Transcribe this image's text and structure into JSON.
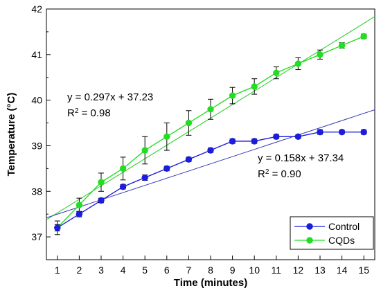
{
  "chart_data": {
    "type": "line",
    "xlabel": "Time (minutes)",
    "ylabel": "Temperature (°C)",
    "xlim": [
      0.5,
      15.5
    ],
    "ylim": [
      36.5,
      42
    ],
    "x_ticks": [
      "1",
      "2",
      "3",
      "4",
      "5",
      "6",
      "7",
      "8",
      "9",
      "10",
      "11",
      "12",
      "13",
      "14",
      "15"
    ],
    "y_ticks": [
      "37",
      "38",
      "39",
      "40",
      "41",
      "42"
    ],
    "legend_position": "bottom-right",
    "grid": false,
    "colors": {
      "control": "#1c1cdc",
      "cqds": "#22dd22",
      "control_fit": "#3a3ab8",
      "cqds_fit": "#22cc22"
    },
    "x": [
      1,
      2,
      3,
      4,
      5,
      6,
      7,
      8,
      9,
      10,
      11,
      12,
      13,
      14,
      15
    ],
    "series": [
      {
        "name": "Control",
        "values": [
          37.2,
          37.5,
          37.8,
          38.1,
          38.3,
          38.5,
          38.7,
          38.9,
          39.1,
          39.1,
          39.2,
          39.2,
          39.3,
          39.3,
          39.3
        ],
        "errors": [
          0.07,
          0.06,
          0.05,
          0.05,
          0.06,
          0.05,
          0.05,
          0.05,
          0.05,
          0.05,
          0.05,
          0.04,
          0.05,
          0.04,
          0.05
        ]
      },
      {
        "name": "CQDs",
        "values": [
          37.2,
          37.7,
          38.2,
          38.5,
          38.9,
          39.2,
          39.5,
          39.8,
          40.1,
          40.3,
          40.6,
          40.8,
          41.0,
          41.2,
          41.4
        ],
        "errors": [
          0.15,
          0.15,
          0.2,
          0.25,
          0.3,
          0.3,
          0.27,
          0.22,
          0.18,
          0.17,
          0.13,
          0.13,
          0.1,
          0.06,
          0.05
        ]
      }
    ],
    "fits": [
      {
        "series": "CQDs",
        "slope": 0.297,
        "intercept": 37.23,
        "equation": "y = 0.297x + 37.23",
        "r2_prefix": "R",
        "r2_sup": "2",
        "r2_value": " = 0.98"
      },
      {
        "series": "Control",
        "slope": 0.158,
        "intercept": 37.34,
        "equation": "y = 0.158x + 37.34",
        "r2_prefix": "R",
        "r2_sup": "2",
        "r2_value": " = 0.90"
      }
    ]
  }
}
